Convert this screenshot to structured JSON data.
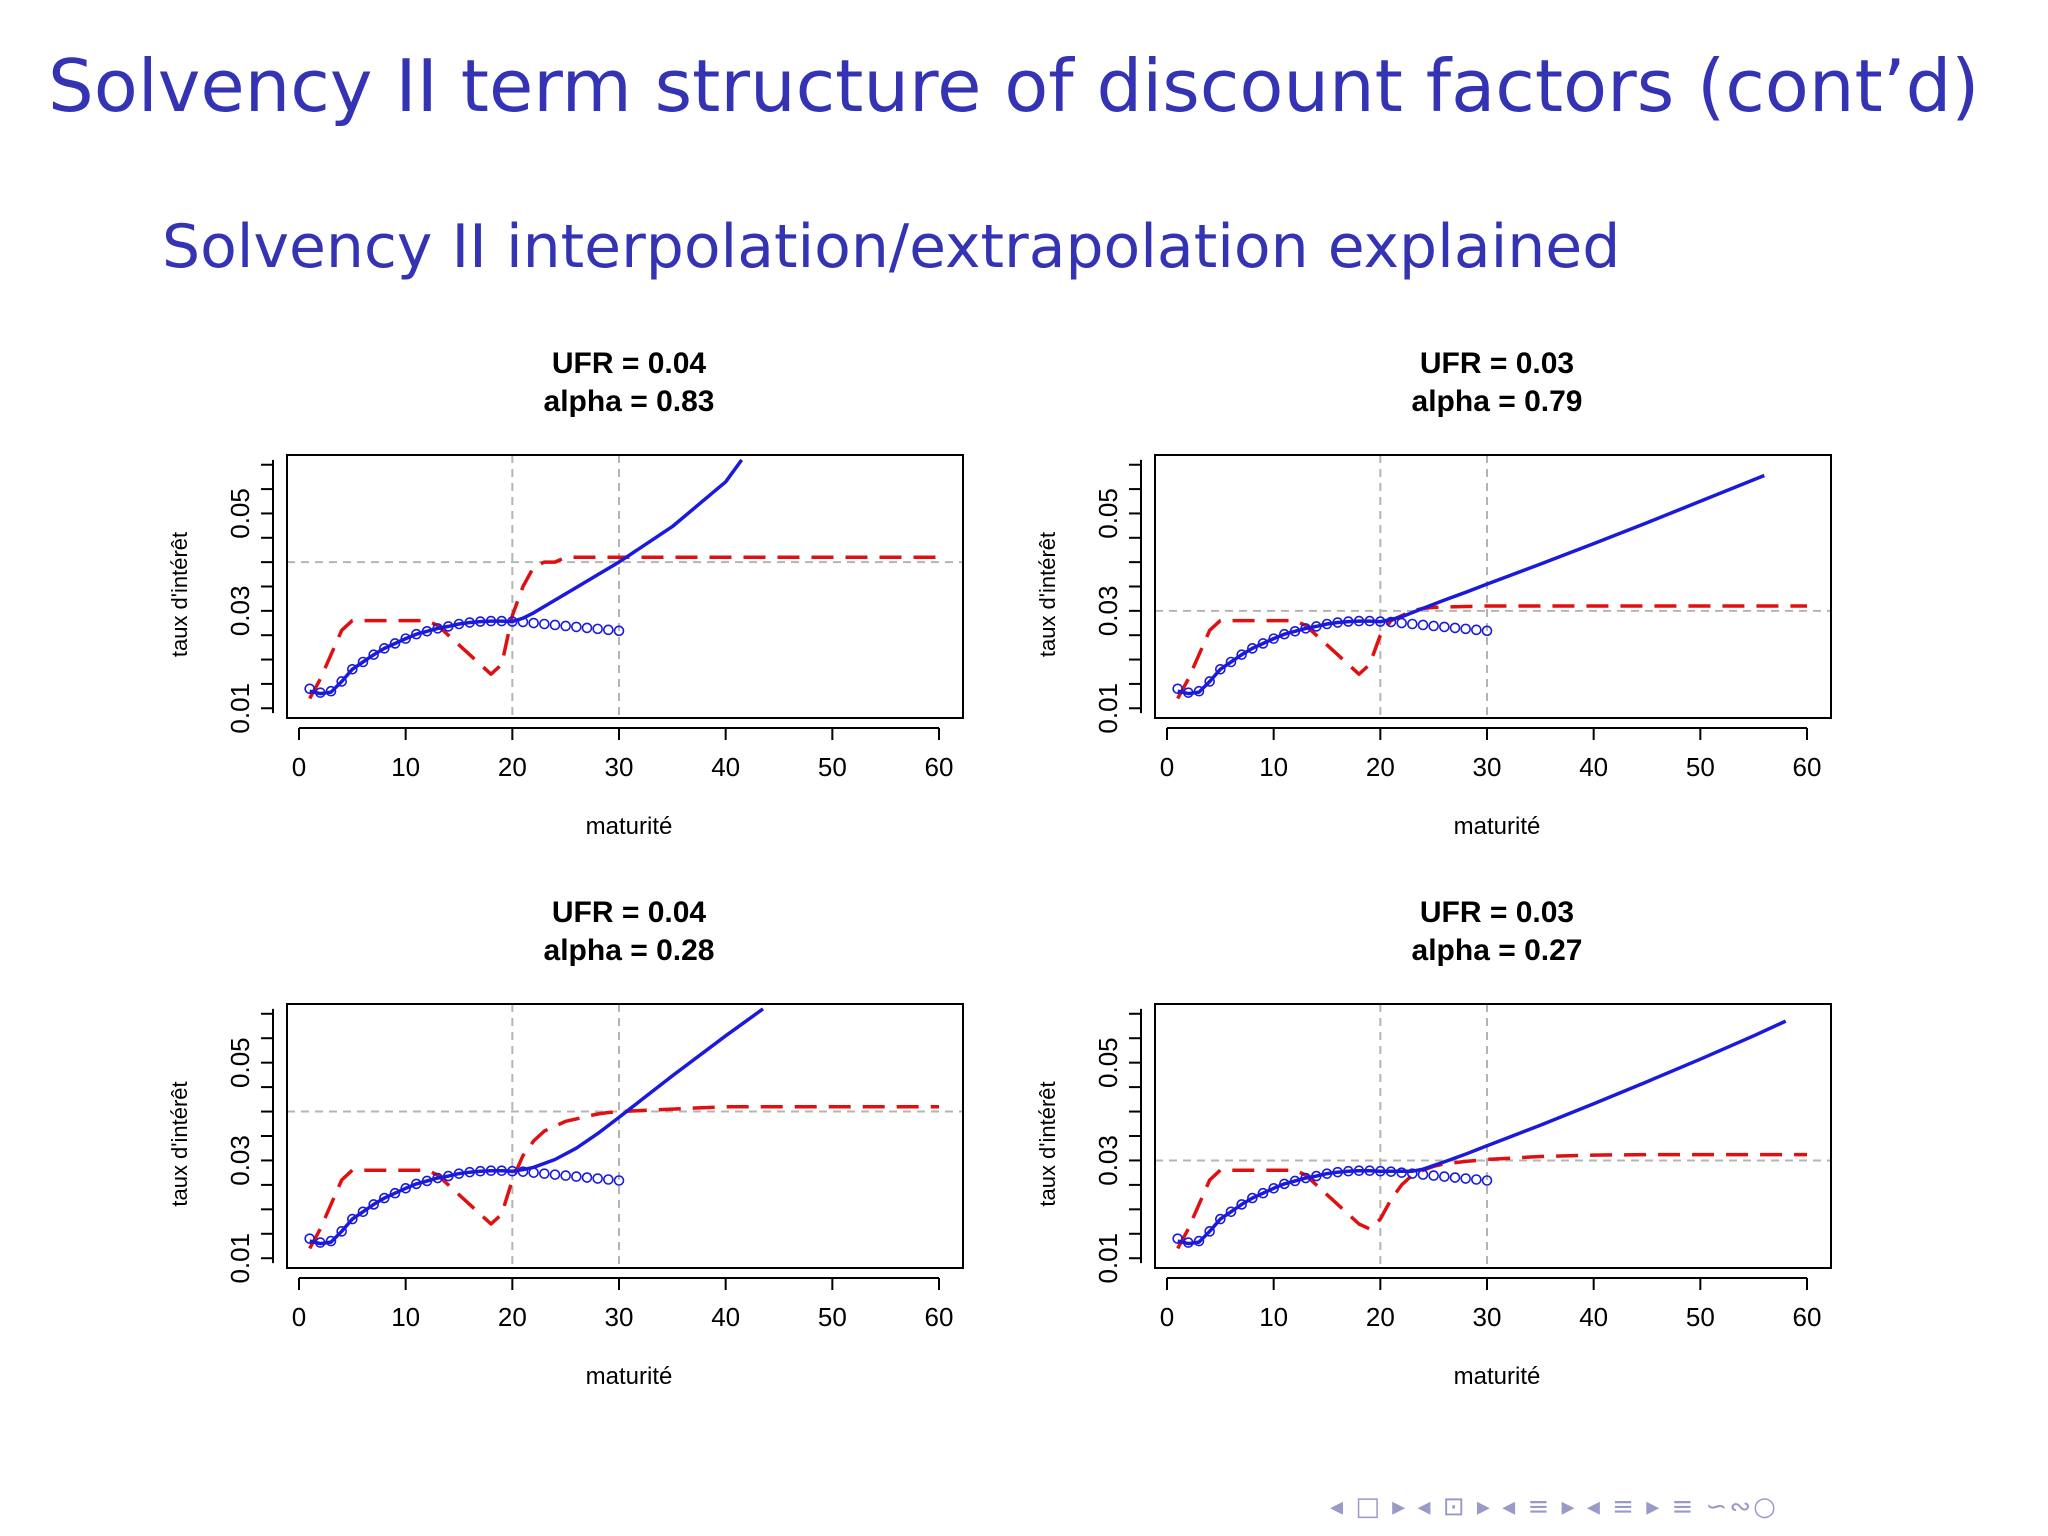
{
  "slide": {
    "title": "Solvency II term structure of discount factors (cont’d)",
    "subtitle": "Solvency II interpolation/extrapolation explained",
    "nav_symbols": "◂ □ ▸ ◂ ⊡ ▸ ◂ ≡ ▸ ◂ ≡ ▸   ≡   ∽∾○"
  },
  "colors": {
    "heading": "#3333b3",
    "blue_series": "#1a1adc",
    "red_series": "#e01010",
    "reference_line": "#b4b4b4"
  },
  "chart_data": [
    {
      "type": "line",
      "title_line1": "UFR =  0.04",
      "title_line2": "alpha =  0.83",
      "xlabel": "maturité",
      "ylabel": "taux d'intérêt",
      "xlim": [
        0,
        60
      ],
      "ylim": [
        0.008,
        0.062
      ],
      "xticks": [
        0,
        10,
        20,
        30,
        40,
        50,
        60
      ],
      "yticks": [
        0.01,
        0.03,
        0.05
      ],
      "ytick_labels": [
        "0.01",
        "0.03",
        "0.05"
      ],
      "reference_lines": {
        "vertical": [
          20,
          30
        ],
        "horizontal": [
          0.04
        ]
      },
      "grid": false,
      "series": [
        {
          "style": "dashed",
          "color": "red",
          "x": [
            1,
            2,
            3,
            4,
            5,
            6,
            7,
            8,
            9,
            10,
            11,
            12,
            13,
            14,
            15,
            16,
            17,
            18,
            19,
            20,
            21,
            22,
            23,
            24,
            25,
            26,
            27,
            28,
            29,
            30,
            35,
            40,
            45,
            50,
            55,
            60
          ],
          "y": [
            0.012,
            0.016,
            0.021,
            0.026,
            0.028,
            0.028,
            0.028,
            0.028,
            0.028,
            0.028,
            0.028,
            0.028,
            0.027,
            0.025,
            0.023,
            0.021,
            0.019,
            0.017,
            0.019,
            0.029,
            0.035,
            0.039,
            0.04,
            0.04,
            0.041,
            0.041,
            0.041,
            0.041,
            0.041,
            0.041,
            0.041,
            0.041,
            0.041,
            0.041,
            0.041,
            0.041
          ]
        },
        {
          "style": "solid",
          "color": "blue",
          "x": [
            1,
            2,
            3,
            4,
            5,
            6,
            7,
            8,
            9,
            10,
            11,
            12,
            13,
            14,
            15,
            16,
            17,
            18,
            19,
            20,
            21,
            22,
            24,
            26,
            28,
            30,
            35,
            40,
            41.5
          ],
          "y": [
            0.0135,
            0.013,
            0.0133,
            0.0155,
            0.018,
            0.0195,
            0.021,
            0.0223,
            0.0233,
            0.0243,
            0.0252,
            0.0258,
            0.0264,
            0.0268,
            0.0273,
            0.0276,
            0.0278,
            0.0279,
            0.0279,
            0.0278,
            0.0285,
            0.0296,
            0.0322,
            0.0348,
            0.0374,
            0.04,
            0.0473,
            0.0565,
            0.061
          ]
        },
        {
          "style": "circles",
          "color": "blue",
          "x": [
            1,
            2,
            3,
            4,
            5,
            6,
            7,
            8,
            9,
            10,
            11,
            12,
            13,
            14,
            15,
            16,
            17,
            18,
            19,
            20,
            21,
            22,
            23,
            24,
            25,
            26,
            27,
            28,
            29,
            30
          ],
          "y": [
            0.014,
            0.0132,
            0.0135,
            0.0155,
            0.018,
            0.0195,
            0.021,
            0.0223,
            0.0233,
            0.0243,
            0.0252,
            0.0258,
            0.0264,
            0.0268,
            0.0273,
            0.0276,
            0.0278,
            0.0279,
            0.0279,
            0.0278,
            0.0277,
            0.0275,
            0.0273,
            0.0271,
            0.0269,
            0.0267,
            0.0265,
            0.0263,
            0.0261,
            0.0259
          ]
        }
      ]
    },
    {
      "type": "line",
      "title_line1": "UFR =  0.03",
      "title_line2": "alpha =  0.79",
      "xlabel": "maturité",
      "ylabel": "taux d'intérêt",
      "xlim": [
        0,
        60
      ],
      "ylim": [
        0.008,
        0.062
      ],
      "xticks": [
        0,
        10,
        20,
        30,
        40,
        50,
        60
      ],
      "yticks": [
        0.01,
        0.03,
        0.05
      ],
      "ytick_labels": [
        "0.01",
        "0.03",
        "0.05"
      ],
      "reference_lines": {
        "vertical": [
          20,
          30
        ],
        "horizontal": [
          0.03
        ]
      },
      "grid": false,
      "series": [
        {
          "style": "dashed",
          "color": "red",
          "x": [
            1,
            2,
            3,
            4,
            5,
            6,
            7,
            8,
            9,
            10,
            11,
            12,
            13,
            14,
            15,
            16,
            17,
            18,
            19,
            20,
            21,
            22,
            23,
            24,
            25,
            26,
            28,
            30,
            35,
            40,
            45,
            50,
            55,
            60
          ],
          "y": [
            0.012,
            0.016,
            0.021,
            0.026,
            0.028,
            0.028,
            0.028,
            0.028,
            0.028,
            0.028,
            0.028,
            0.028,
            0.027,
            0.025,
            0.023,
            0.021,
            0.019,
            0.017,
            0.019,
            0.025,
            0.028,
            0.029,
            0.03,
            0.0305,
            0.0307,
            0.0308,
            0.0309,
            0.031,
            0.031,
            0.031,
            0.031,
            0.031,
            0.031,
            0.031
          ]
        },
        {
          "style": "solid",
          "color": "blue",
          "x": [
            1,
            2,
            3,
            4,
            5,
            6,
            7,
            8,
            9,
            10,
            11,
            12,
            13,
            14,
            15,
            16,
            17,
            18,
            19,
            20,
            21,
            22,
            24,
            26,
            28,
            30,
            35,
            40,
            45,
            50,
            55,
            56
          ],
          "y": [
            0.0135,
            0.013,
            0.0133,
            0.0155,
            0.018,
            0.0195,
            0.021,
            0.0223,
            0.0233,
            0.0243,
            0.0252,
            0.0258,
            0.0264,
            0.0268,
            0.0273,
            0.0276,
            0.0278,
            0.0279,
            0.0279,
            0.0278,
            0.0282,
            0.0288,
            0.0305,
            0.0322,
            0.0338,
            0.0355,
            0.0396,
            0.0438,
            0.0481,
            0.0525,
            0.0569,
            0.0578
          ]
        },
        {
          "style": "circles",
          "color": "blue",
          "x": [
            1,
            2,
            3,
            4,
            5,
            6,
            7,
            8,
            9,
            10,
            11,
            12,
            13,
            14,
            15,
            16,
            17,
            18,
            19,
            20,
            21,
            22,
            23,
            24,
            25,
            26,
            27,
            28,
            29,
            30
          ],
          "y": [
            0.014,
            0.0132,
            0.0135,
            0.0155,
            0.018,
            0.0195,
            0.021,
            0.0223,
            0.0233,
            0.0243,
            0.0252,
            0.0258,
            0.0264,
            0.0268,
            0.0273,
            0.0276,
            0.0278,
            0.0279,
            0.0279,
            0.0278,
            0.0277,
            0.0275,
            0.0273,
            0.0271,
            0.0269,
            0.0267,
            0.0265,
            0.0263,
            0.0261,
            0.0259
          ]
        }
      ]
    },
    {
      "type": "line",
      "title_line1": "UFR =  0.04",
      "title_line2": "alpha =  0.28",
      "xlabel": "maturité",
      "ylabel": "taux d'intérêt",
      "xlim": [
        0,
        60
      ],
      "ylim": [
        0.008,
        0.062
      ],
      "xticks": [
        0,
        10,
        20,
        30,
        40,
        50,
        60
      ],
      "yticks": [
        0.01,
        0.03,
        0.05
      ],
      "ytick_labels": [
        "0.01",
        "0.03",
        "0.05"
      ],
      "reference_lines": {
        "vertical": [
          20,
          30
        ],
        "horizontal": [
          0.04
        ]
      },
      "grid": false,
      "series": [
        {
          "style": "dashed",
          "color": "red",
          "x": [
            1,
            2,
            3,
            4,
            5,
            6,
            7,
            8,
            9,
            10,
            11,
            12,
            13,
            14,
            15,
            16,
            17,
            18,
            19,
            20,
            21,
            22,
            23,
            24,
            25,
            26,
            27,
            28,
            29,
            30,
            35,
            40,
            45,
            50,
            55,
            60
          ],
          "y": [
            0.012,
            0.016,
            0.021,
            0.026,
            0.028,
            0.028,
            0.028,
            0.028,
            0.028,
            0.028,
            0.028,
            0.028,
            0.027,
            0.025,
            0.023,
            0.021,
            0.019,
            0.017,
            0.019,
            0.026,
            0.031,
            0.034,
            0.036,
            0.037,
            0.038,
            0.0385,
            0.039,
            0.0395,
            0.0398,
            0.04,
            0.0405,
            0.041,
            0.041,
            0.041,
            0.041,
            0.041
          ]
        },
        {
          "style": "solid",
          "color": "blue",
          "x": [
            1,
            2,
            3,
            4,
            5,
            6,
            7,
            8,
            9,
            10,
            11,
            12,
            13,
            14,
            15,
            16,
            17,
            18,
            19,
            20,
            21,
            22,
            24,
            26,
            28,
            30,
            32,
            35,
            40,
            43.5
          ],
          "y": [
            0.0135,
            0.013,
            0.0133,
            0.0155,
            0.018,
            0.0195,
            0.021,
            0.0223,
            0.0233,
            0.0243,
            0.0252,
            0.0258,
            0.0264,
            0.0268,
            0.0273,
            0.0276,
            0.0278,
            0.0279,
            0.0279,
            0.0278,
            0.0281,
            0.0286,
            0.0302,
            0.0325,
            0.0355,
            0.0388,
            0.0422,
            0.0473,
            0.0555,
            0.061
          ]
        },
        {
          "style": "circles",
          "color": "blue",
          "x": [
            1,
            2,
            3,
            4,
            5,
            6,
            7,
            8,
            9,
            10,
            11,
            12,
            13,
            14,
            15,
            16,
            17,
            18,
            19,
            20,
            21,
            22,
            23,
            24,
            25,
            26,
            27,
            28,
            29,
            30
          ],
          "y": [
            0.014,
            0.0132,
            0.0135,
            0.0155,
            0.018,
            0.0195,
            0.021,
            0.0223,
            0.0233,
            0.0243,
            0.0252,
            0.0258,
            0.0264,
            0.0268,
            0.0273,
            0.0276,
            0.0278,
            0.0279,
            0.0279,
            0.0278,
            0.0277,
            0.0275,
            0.0273,
            0.0271,
            0.0269,
            0.0267,
            0.0265,
            0.0263,
            0.0261,
            0.0259
          ]
        }
      ]
    },
    {
      "type": "line",
      "title_line1": "UFR =  0.03",
      "title_line2": "alpha =  0.27",
      "xlabel": "maturité",
      "ylabel": "taux d'intérêt",
      "xlim": [
        0,
        60
      ],
      "ylim": [
        0.008,
        0.062
      ],
      "xticks": [
        0,
        10,
        20,
        30,
        40,
        50,
        60
      ],
      "yticks": [
        0.01,
        0.03,
        0.05
      ],
      "ytick_labels": [
        "0.01",
        "0.03",
        "0.05"
      ],
      "reference_lines": {
        "vertical": [
          20,
          30
        ],
        "horizontal": [
          0.03
        ]
      },
      "grid": false,
      "series": [
        {
          "style": "dashed",
          "color": "red",
          "x": [
            1,
            2,
            3,
            4,
            5,
            6,
            7,
            8,
            9,
            10,
            11,
            12,
            13,
            14,
            15,
            16,
            17,
            18,
            19,
            20,
            21,
            22,
            23,
            24,
            25,
            26,
            28,
            30,
            35,
            40,
            45,
            50,
            55,
            60
          ],
          "y": [
            0.012,
            0.016,
            0.021,
            0.026,
            0.028,
            0.028,
            0.028,
            0.028,
            0.028,
            0.028,
            0.028,
            0.028,
            0.027,
            0.025,
            0.023,
            0.021,
            0.019,
            0.017,
            0.016,
            0.018,
            0.022,
            0.025,
            0.027,
            0.028,
            0.0288,
            0.0293,
            0.0298,
            0.0302,
            0.0308,
            0.0311,
            0.0312,
            0.0312,
            0.0312,
            0.0312
          ]
        },
        {
          "style": "solid",
          "color": "blue",
          "x": [
            1,
            2,
            3,
            4,
            5,
            6,
            7,
            8,
            9,
            10,
            11,
            12,
            13,
            14,
            15,
            16,
            17,
            18,
            19,
            20,
            21,
            22,
            23,
            24,
            26,
            28,
            30,
            35,
            40,
            45,
            50,
            55,
            58
          ],
          "y": [
            0.0135,
            0.013,
            0.0133,
            0.0155,
            0.018,
            0.0195,
            0.021,
            0.0223,
            0.0233,
            0.0243,
            0.0252,
            0.0258,
            0.0264,
            0.0268,
            0.0273,
            0.0276,
            0.0278,
            0.0279,
            0.0279,
            0.0278,
            0.0278,
            0.0278,
            0.0278,
            0.0282,
            0.0297,
            0.0313,
            0.033,
            0.0372,
            0.0416,
            0.0461,
            0.0507,
            0.0555,
            0.0585
          ]
        },
        {
          "style": "circles",
          "color": "blue",
          "x": [
            1,
            2,
            3,
            4,
            5,
            6,
            7,
            8,
            9,
            10,
            11,
            12,
            13,
            14,
            15,
            16,
            17,
            18,
            19,
            20,
            21,
            22,
            23,
            24,
            25,
            26,
            27,
            28,
            29,
            30
          ],
          "y": [
            0.014,
            0.0132,
            0.0135,
            0.0155,
            0.018,
            0.0195,
            0.021,
            0.0223,
            0.0233,
            0.0243,
            0.0252,
            0.0258,
            0.0264,
            0.0268,
            0.0273,
            0.0276,
            0.0278,
            0.0279,
            0.0279,
            0.0278,
            0.0277,
            0.0275,
            0.0273,
            0.0271,
            0.0269,
            0.0267,
            0.0265,
            0.0263,
            0.0261,
            0.0259
          ]
        }
      ]
    }
  ]
}
